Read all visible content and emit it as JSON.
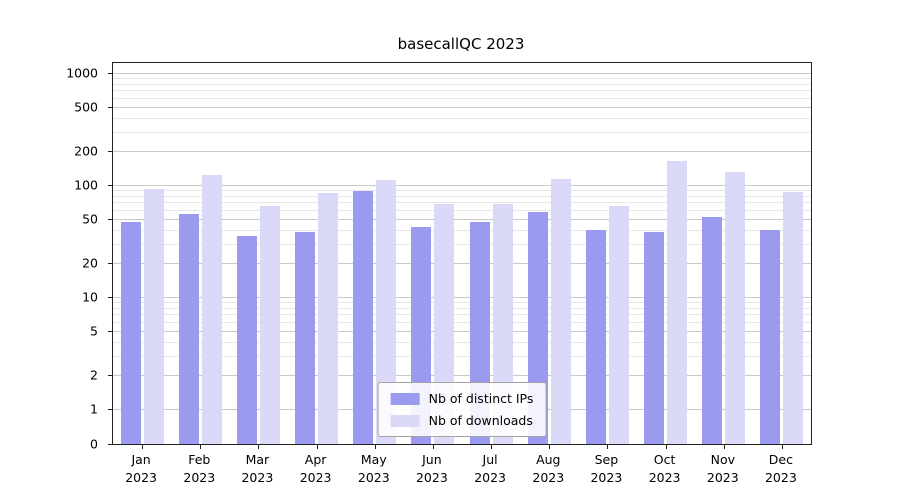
{
  "title": "basecallQC 2023",
  "chart_data": {
    "type": "bar",
    "title": "basecallQC 2023",
    "categories": [
      "Jan 2023",
      "Feb 2023",
      "Mar 2023",
      "Apr 2023",
      "May 2023",
      "Jun 2023",
      "Jul 2023",
      "Aug 2023",
      "Sep 2023",
      "Oct 2023",
      "Nov 2023",
      "Dec 2023"
    ],
    "series": [
      {
        "name": "Nb of distinct IPs",
        "color": "#9a9aee",
        "values": [
          47,
          55,
          35,
          38,
          88,
          42,
          47,
          57,
          40,
          38,
          52,
          40
        ]
      },
      {
        "name": "Nb of downloads",
        "color": "#dadaf8",
        "values": [
          92,
          122,
          65,
          85,
          110,
          68,
          68,
          113,
          65,
          165,
          130,
          86
        ]
      }
    ],
    "yscale": "symlog",
    "yticks": [
      0,
      1,
      2,
      5,
      10,
      20,
      50,
      100,
      200,
      500,
      1000
    ],
    "ylim": [
      0,
      1228
    ],
    "xlabel": "",
    "ylabel": "",
    "grid": true,
    "legend_position": "bottom-center",
    "colors": {
      "background": "#ffffff",
      "grid_major": "#c9c9c9",
      "grid_minor": "#e7e7e7",
      "axis": "#222222"
    }
  }
}
